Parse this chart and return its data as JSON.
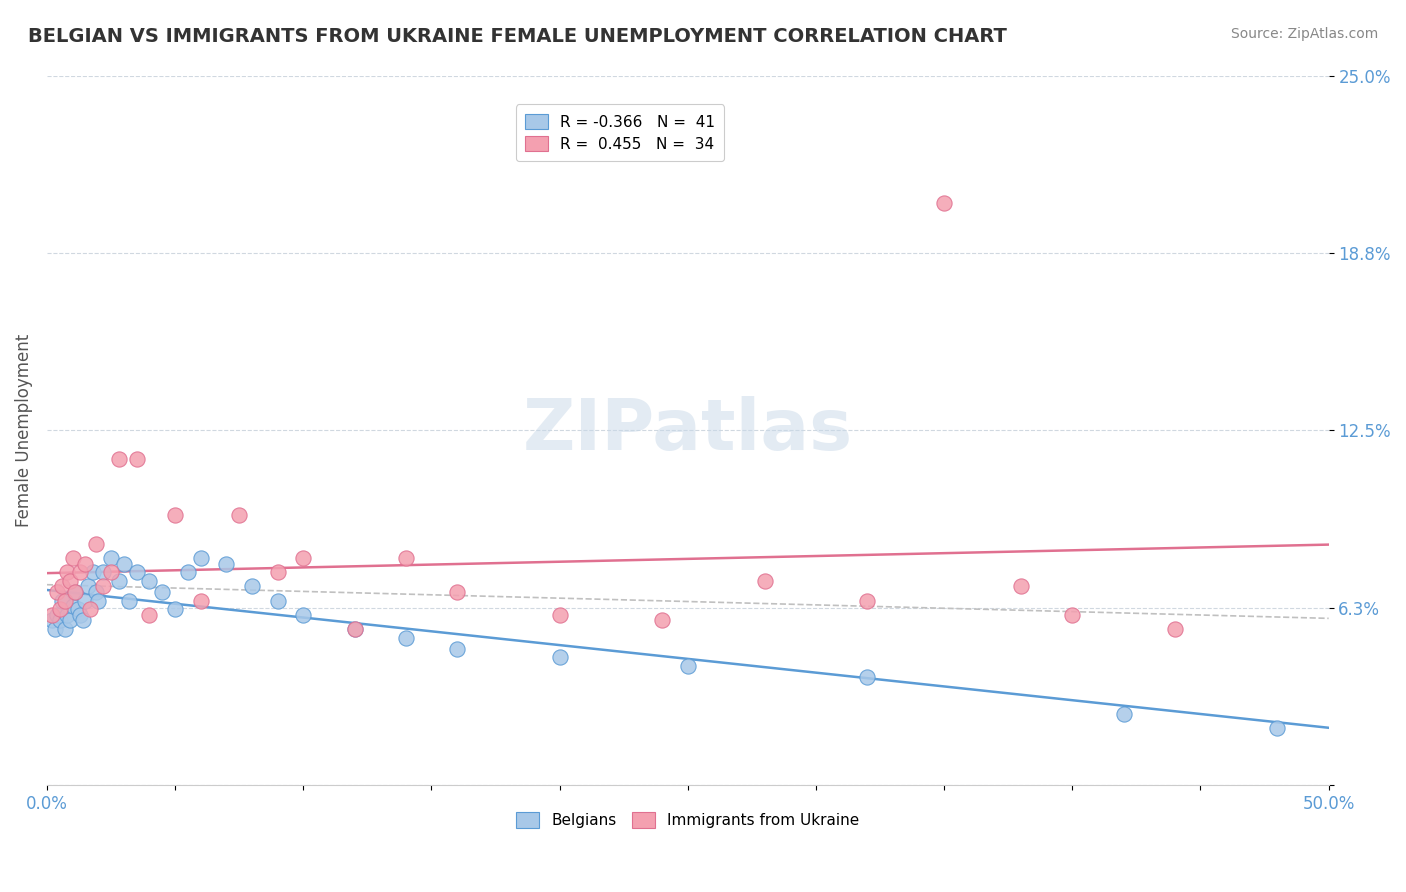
{
  "title": "BELGIAN VS IMMIGRANTS FROM UKRAINE FEMALE UNEMPLOYMENT CORRELATION CHART",
  "source": "Source: ZipAtlas.com",
  "xlabel": "",
  "ylabel": "Female Unemployment",
  "xlim": [
    0.0,
    0.5
  ],
  "ylim": [
    0.0,
    0.25
  ],
  "yticks": [
    0.0,
    0.0625,
    0.125,
    0.1875,
    0.25
  ],
  "ytick_labels": [
    "",
    "6.3%",
    "12.5%",
    "18.8%",
    "25.0%"
  ],
  "xtick_labels": [
    "0.0%",
    "",
    "",
    "",
    "",
    "",
    "",
    "",
    "",
    "",
    "50.0%"
  ],
  "legend_r1": "R = -0.366",
  "legend_n1": "N =  41",
  "legend_r2": "R =  0.455",
  "legend_n2": "N =  34",
  "belgian_color": "#a8c8e8",
  "ukrainian_color": "#f4a0b0",
  "belgian_line_color": "#5b9bd5",
  "ukrainian_line_color": "#e07090",
  "trend_line_color": "#c0c0c0",
  "watermark": "ZIPatlas",
  "watermark_color": "#c8d8e8",
  "belgian_x": [
    0.002,
    0.003,
    0.004,
    0.005,
    0.006,
    0.007,
    0.008,
    0.009,
    0.01,
    0.011,
    0.012,
    0.013,
    0.014,
    0.015,
    0.016,
    0.018,
    0.019,
    0.02,
    0.022,
    0.025,
    0.028,
    0.03,
    0.032,
    0.035,
    0.04,
    0.045,
    0.05,
    0.055,
    0.06,
    0.07,
    0.08,
    0.09,
    0.1,
    0.12,
    0.14,
    0.16,
    0.2,
    0.25,
    0.32,
    0.42,
    0.48
  ],
  "belgian_y": [
    0.058,
    0.055,
    0.06,
    0.058,
    0.065,
    0.055,
    0.06,
    0.058,
    0.063,
    0.068,
    0.062,
    0.06,
    0.058,
    0.065,
    0.07,
    0.075,
    0.068,
    0.065,
    0.075,
    0.08,
    0.072,
    0.078,
    0.065,
    0.075,
    0.072,
    0.068,
    0.062,
    0.075,
    0.08,
    0.078,
    0.07,
    0.065,
    0.06,
    0.055,
    0.052,
    0.048,
    0.045,
    0.042,
    0.038,
    0.025,
    0.02
  ],
  "ukrainian_x": [
    0.002,
    0.004,
    0.005,
    0.006,
    0.007,
    0.008,
    0.009,
    0.01,
    0.011,
    0.013,
    0.015,
    0.017,
    0.019,
    0.022,
    0.025,
    0.028,
    0.035,
    0.04,
    0.05,
    0.06,
    0.075,
    0.09,
    0.1,
    0.12,
    0.14,
    0.16,
    0.2,
    0.24,
    0.28,
    0.32,
    0.35,
    0.38,
    0.4,
    0.44
  ],
  "ukrainian_y": [
    0.06,
    0.068,
    0.062,
    0.07,
    0.065,
    0.075,
    0.072,
    0.08,
    0.068,
    0.075,
    0.078,
    0.062,
    0.085,
    0.07,
    0.075,
    0.115,
    0.115,
    0.06,
    0.095,
    0.065,
    0.095,
    0.075,
    0.08,
    0.055,
    0.08,
    0.068,
    0.06,
    0.058,
    0.072,
    0.065,
    0.205,
    0.07,
    0.06,
    0.055
  ]
}
